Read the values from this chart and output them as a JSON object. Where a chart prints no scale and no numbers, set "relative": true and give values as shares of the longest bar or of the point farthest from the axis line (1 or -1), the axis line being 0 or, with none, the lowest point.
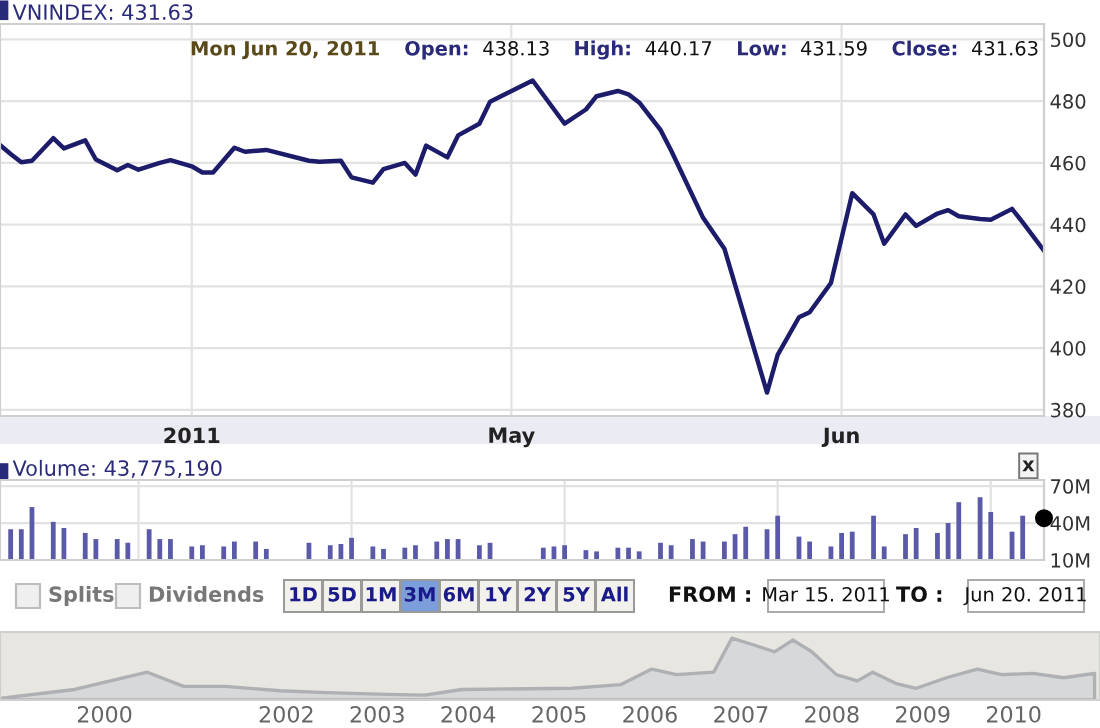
{
  "chart_data": [
    {
      "type": "line",
      "title": "VNINDEX: 431.63",
      "annotations": [
        "Mon Jun 20, 2011",
        "Open:",
        "438.13",
        "High:",
        "440.17",
        "Low:",
        "431.59",
        "Close:",
        "431.63"
      ],
      "x": [
        "2011-03-14",
        "2011-03-15",
        "2011-03-16",
        "2011-03-17",
        "2011-03-19",
        "2011-03-20",
        "2011-03-22",
        "2011-03-23",
        "2011-03-25",
        "2011-03-26",
        "2011-03-27",
        "2011-03-29",
        "2011-03-30",
        "2011-04-01",
        "2011-04-02",
        "2011-04-03",
        "2011-04-05",
        "2011-04-06",
        "2011-04-08",
        "2011-04-12",
        "2011-04-13",
        "2011-04-15",
        "2011-04-16",
        "2011-04-18",
        "2011-04-19",
        "2011-04-21",
        "2011-04-22",
        "2011-04-23",
        "2011-04-25",
        "2011-04-26",
        "2011-04-28",
        "2011-04-29",
        "2011-05-03",
        "2011-05-06",
        "2011-05-08",
        "2011-05-09",
        "2011-05-11",
        "2011-05-12",
        "2011-05-13",
        "2011-05-15",
        "2011-05-16",
        "2011-05-19",
        "2011-05-21",
        "2011-05-25",
        "2011-05-26",
        "2011-05-28",
        "2011-05-29",
        "2011-05-31",
        "2011-06-02",
        "2011-06-04",
        "2011-06-05",
        "2011-06-07",
        "2011-06-08",
        "2011-06-10",
        "2011-06-11",
        "2011-06-12",
        "2011-06-14",
        "2011-06-15",
        "2011-06-17",
        "2011-06-18",
        "2011-06-20"
      ],
      "series": [
        {
          "color": "#1c1c6b",
          "values": [
            465.8,
            462.9,
            460.2,
            460.7,
            468.0,
            464.7,
            467.3,
            461.1,
            457.6,
            459.3,
            457.8,
            460.0,
            460.9,
            458.9,
            456.9,
            456.9,
            464.9,
            463.6,
            464.2,
            460.7,
            460.4,
            460.7,
            455.3,
            453.6,
            458.0,
            460.0,
            456.2,
            465.6,
            461.8,
            468.9,
            472.7,
            479.8,
            486.7,
            472.7,
            477.3,
            481.6,
            483.3,
            482.2,
            479.6,
            470.7,
            464.0,
            442.2,
            432.2,
            385.6,
            397.8,
            410.0,
            411.6,
            421.1,
            450.2,
            443.3,
            433.8,
            443.3,
            439.6,
            443.6,
            444.7,
            442.7,
            441.8,
            441.6,
            445.1,
            440.7,
            431.6
          ]
        }
      ],
      "xlim": [
        "2011-03-14",
        "2011-06-20"
      ],
      "xticks": [
        {
          "value": "2011-04-01",
          "label": "2011"
        },
        {
          "value": "2011-05-01",
          "label": "May"
        },
        {
          "value": "2011-06-01",
          "label": "Jun"
        }
      ],
      "ylim": [
        378,
        505
      ],
      "yticks": [
        380,
        400,
        420,
        440,
        460,
        480,
        500
      ],
      "grid": true,
      "line_style": "solid"
    },
    {
      "type": "bar",
      "title": "Volume: 43,775,190",
      "annotations": [
        "x"
      ],
      "series": [
        {
          "color": "#5a5aa8",
          "x": [
            "2011-03-15",
            "2011-03-16",
            "2011-03-17",
            "2011-03-19",
            "2011-03-20",
            "2011-03-22",
            "2011-03-23",
            "2011-03-25",
            "2011-03-26",
            "2011-03-28",
            "2011-03-29",
            "2011-03-30",
            "2011-04-01",
            "2011-04-02",
            "2011-04-04",
            "2011-04-05",
            "2011-04-07",
            "2011-04-08",
            "2011-04-12",
            "2011-04-14",
            "2011-04-15",
            "2011-04-16",
            "2011-04-18",
            "2011-04-19",
            "2011-04-21",
            "2011-04-22",
            "2011-04-24",
            "2011-04-25",
            "2011-04-26",
            "2011-04-28",
            "2011-04-29",
            "2011-05-04",
            "2011-05-05",
            "2011-05-06",
            "2011-05-08",
            "2011-05-09",
            "2011-05-11",
            "2011-05-12",
            "2011-05-13",
            "2011-05-15",
            "2011-05-16",
            "2011-05-18",
            "2011-05-19",
            "2011-05-21",
            "2011-05-22",
            "2011-05-23",
            "2011-05-25",
            "2011-05-26",
            "2011-05-28",
            "2011-05-29",
            "2011-05-31",
            "2011-06-01",
            "2011-06-02",
            "2011-06-04",
            "2011-06-05",
            "2011-06-07",
            "2011-06-08",
            "2011-06-10",
            "2011-06-11",
            "2011-06-12",
            "2011-06-14",
            "2011-06-15",
            "2011-06-17",
            "2011-06-18"
          ],
          "values": [
            35,
            35,
            53,
            41,
            36,
            32,
            27,
            27,
            24,
            35,
            27,
            27,
            21,
            22,
            21,
            25,
            25,
            19,
            24,
            22,
            23,
            28,
            21,
            19,
            20,
            22,
            25,
            27,
            27,
            22,
            24,
            20,
            21,
            22,
            18,
            17,
            20,
            20,
            17,
            24,
            22,
            27,
            25,
            25,
            31,
            37,
            35,
            46,
            29,
            25,
            21,
            32,
            33,
            46,
            21,
            31,
            36,
            32,
            40,
            57,
            61,
            49,
            33,
            46
          ]
        },
        {
          "type": "scatter",
          "color": "#000000",
          "x": [
            "2011-06-20"
          ],
          "values": [
            44
          ]
        }
      ],
      "xlim": [
        "2011-03-14",
        "2011-06-20"
      ],
      "ylim": [
        10,
        75
      ],
      "yticks": [
        {
          "value": 10,
          "label": "10M"
        },
        {
          "value": 40,
          "label": "40M"
        },
        {
          "value": 70,
          "label": "70M"
        }
      ],
      "grid": true,
      "tick_labels": "y"
    },
    {
      "type": "other",
      "annotations": [
        "Splits",
        "Dividends",
        "1D",
        "5D",
        "1M",
        "3M",
        "6M",
        "1Y",
        "2Y",
        "5Y",
        "All",
        "FROM :",
        "Mar 15. 2011",
        "TO :",
        "Jun 20. 2011"
      ]
    },
    {
      "type": "area",
      "relative": true,
      "x": [
        1998.87,
        1999.67,
        2000.47,
        2000.87,
        2001.33,
        2001.93,
        2002.44,
        2003.11,
        2003.52,
        2003.93,
        2005.14,
        2005.68,
        2006.02,
        2006.29,
        2006.7,
        2006.9,
        2007.1,
        2007.37,
        2007.57,
        2007.78,
        2008.05,
        2008.28,
        2008.45,
        2008.72,
        2008.93,
        2009.26,
        2009.6,
        2009.87,
        2010.21,
        2010.55,
        2010.89
      ],
      "series": [
        {
          "color": "#d6d8da",
          "values": [
            0.03,
            0.17,
            0.45,
            0.22,
            0.22,
            0.15,
            0.12,
            0.09,
            0.08,
            0.17,
            0.19,
            0.25,
            0.5,
            0.41,
            0.45,
            1.0,
            0.91,
            0.78,
            0.97,
            0.78,
            0.41,
            0.31,
            0.45,
            0.26,
            0.19,
            0.36,
            0.5,
            0.41,
            0.43,
            0.36,
            0.43
          ]
        }
      ],
      "xlim": [
        1998.85,
        2010.95
      ],
      "xticks": [
        2000,
        2002,
        2003,
        2004,
        2005,
        2006,
        2007,
        2008,
        2009,
        2010
      ],
      "tick_labels": "x"
    }
  ]
}
